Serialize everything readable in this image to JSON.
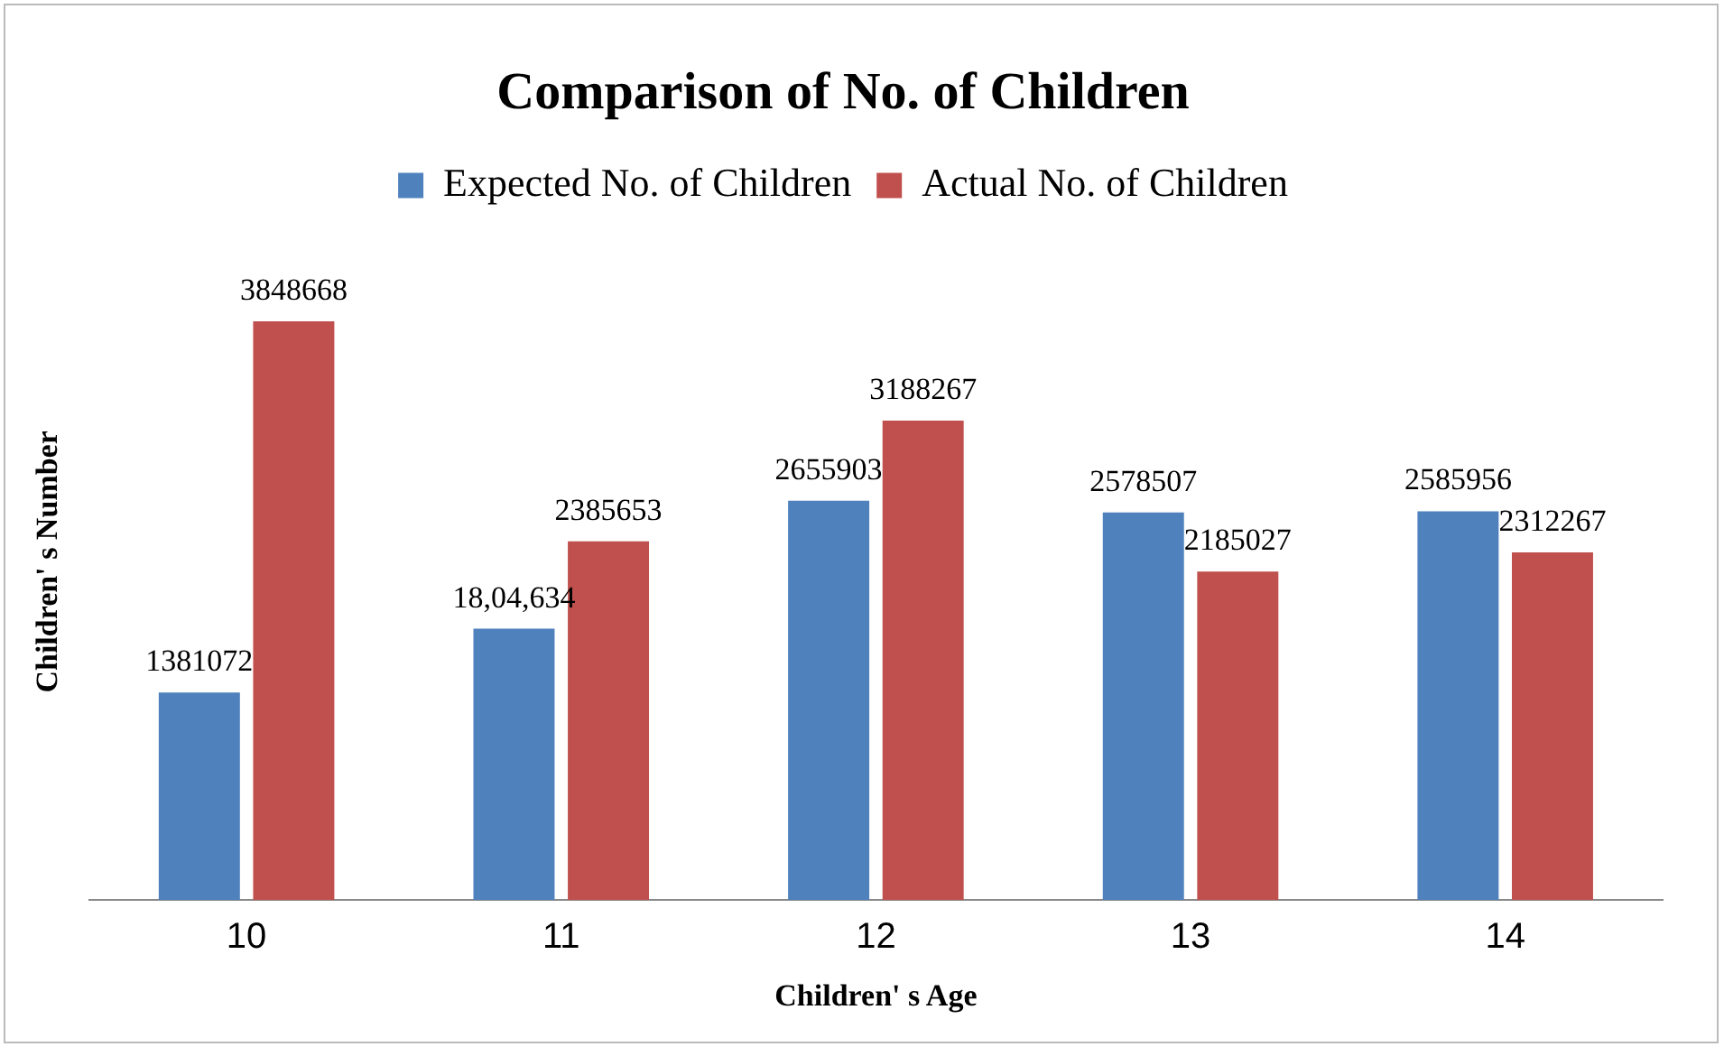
{
  "chart_data": {
    "type": "bar",
    "title": "Comparison of No. of Children",
    "xlabel": "Children' s Age",
    "ylabel": "Children' s Number",
    "categories": [
      "10",
      "11",
      "12",
      "13",
      "14"
    ],
    "legend": "top",
    "grid": false,
    "series": [
      {
        "name": "Expected No. of Children",
        "color": "#4f81bd",
        "values": [
          1381072,
          1804634,
          2655903,
          2578507,
          2585956
        ],
        "value_labels": [
          "1381072",
          "18,04,634",
          "2655903",
          "2578507",
          "2585956"
        ]
      },
      {
        "name": "Actual No. of Children",
        "color": "#c0504d",
        "values": [
          3848668,
          2385653,
          3188267,
          2185027,
          2312267
        ],
        "value_labels": [
          "3848668",
          "2385653",
          "3188267",
          "2185027",
          "2312267"
        ]
      }
    ]
  }
}
